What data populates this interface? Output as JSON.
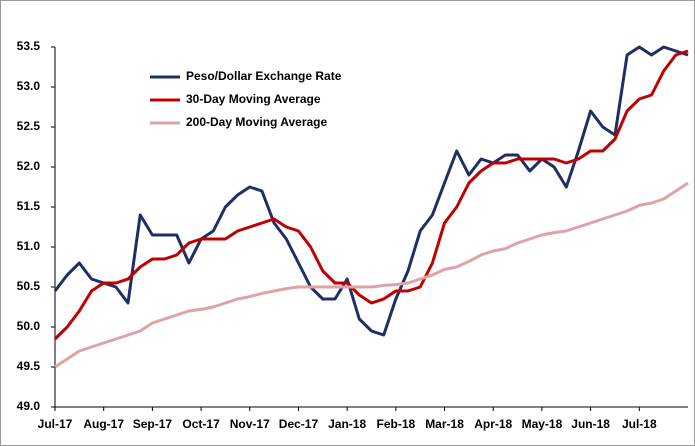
{
  "chart_data": {
    "type": "line",
    "categories": [
      "Jul-17",
      null,
      null,
      null,
      "Aug-17",
      null,
      null,
      null,
      "Sep-17",
      null,
      null,
      null,
      "Oct-17",
      null,
      null,
      null,
      "Nov-17",
      null,
      null,
      null,
      "Dec-17",
      null,
      null,
      null,
      "Jan-18",
      null,
      null,
      null,
      "Feb-18",
      null,
      null,
      null,
      "Mar-18",
      null,
      null,
      null,
      "Apr-18",
      null,
      null,
      null,
      "May-18",
      null,
      null,
      null,
      "Jun-18",
      null,
      null,
      null,
      "Jul-18",
      null,
      null,
      null,
      null
    ],
    "series": [
      {
        "name": "Peso/Dollar Exchange Rate",
        "color": "#1f2f66",
        "values": [
          50.45,
          50.65,
          50.8,
          50.6,
          50.55,
          50.5,
          50.3,
          51.4,
          51.15,
          51.15,
          51.15,
          50.8,
          51.1,
          51.2,
          51.5,
          51.65,
          51.75,
          51.7,
          51.3,
          51.1,
          50.8,
          50.5,
          50.35,
          50.35,
          50.6,
          50.1,
          49.95,
          49.9,
          50.35,
          50.7,
          51.2,
          51.4,
          51.8,
          52.2,
          51.9,
          52.1,
          52.05,
          52.15,
          52.15,
          51.95,
          52.1,
          52.0,
          51.75,
          52.2,
          52.7,
          52.5,
          52.4,
          53.4,
          53.5,
          53.4,
          53.5,
          53.45,
          53.4
        ]
      },
      {
        "name": "30-Day Moving Average",
        "color": "#c00000",
        "values": [
          49.85,
          50.0,
          50.2,
          50.45,
          50.55,
          50.55,
          50.6,
          50.75,
          50.85,
          50.85,
          50.9,
          51.05,
          51.1,
          51.1,
          51.1,
          51.2,
          51.25,
          51.3,
          51.35,
          51.25,
          51.2,
          51.0,
          50.7,
          50.55,
          50.55,
          50.4,
          50.3,
          50.35,
          50.45,
          50.45,
          50.5,
          50.8,
          51.3,
          51.5,
          51.8,
          51.95,
          52.05,
          52.05,
          52.1,
          52.1,
          52.1,
          52.1,
          52.05,
          52.1,
          52.2,
          52.2,
          52.35,
          52.7,
          52.85,
          52.9,
          53.2,
          53.4,
          53.45
        ]
      },
      {
        "name": "200-Day Moving Average",
        "color": "#e0a3a3",
        "values": [
          49.5,
          49.6,
          49.7,
          49.75,
          49.8,
          49.85,
          49.9,
          49.95,
          50.05,
          50.1,
          50.15,
          50.2,
          50.22,
          50.25,
          50.3,
          50.35,
          50.38,
          50.42,
          50.45,
          50.48,
          50.5,
          50.5,
          50.5,
          50.5,
          50.5,
          50.5,
          50.5,
          50.52,
          50.53,
          50.55,
          50.6,
          50.65,
          50.72,
          50.75,
          50.82,
          50.9,
          50.95,
          50.98,
          51.05,
          51.1,
          51.15,
          51.18,
          51.2,
          51.25,
          51.3,
          51.35,
          51.4,
          51.45,
          51.52,
          51.55,
          51.6,
          51.7,
          51.8
        ]
      }
    ],
    "ylim": [
      49,
      53.5
    ],
    "yticks": [
      {
        "value": 49,
        "label": "49.0"
      },
      49.5,
      {
        "value": 50,
        "label": "50.0"
      },
      50.5,
      {
        "value": 51,
        "label": "51.0"
      },
      51.5,
      {
        "value": 52,
        "label": "52.0"
      },
      52.5,
      {
        "value": 53,
        "label": "53.0"
      },
      53.5
    ],
    "legend": "upper-left"
  }
}
